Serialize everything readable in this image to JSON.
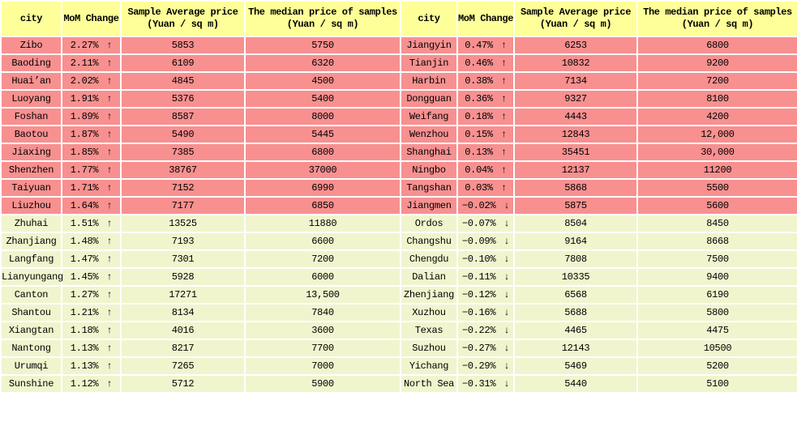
{
  "chart_data": {
    "type": "table",
    "column_headers": {
      "city": "city",
      "mom": "MoM Change",
      "avg_line1": "Sample Average price",
      "avg_line2": "(Yuan / sq m)",
      "median_line1": "The median price of samples",
      "median_line2": "(Yuan / sq m)"
    },
    "arrow_up": "↑",
    "arrow_down": "↓",
    "colors": {
      "header_bg": "#FFFF99",
      "rose_row_bg": "#F89090",
      "lime_row_bg": "#F0F5CE",
      "grid": "#FFFFFF",
      "text": "#000000"
    },
    "tables": [
      {
        "rose_row_count": 10,
        "rows": [
          [
            "Zibo",
            "2.27%",
            "up",
            "5853",
            "5750"
          ],
          [
            "Baoding",
            "2.11%",
            "up",
            "6109",
            "6320"
          ],
          [
            "Huai’an",
            "2.02%",
            "up",
            "4845",
            "4500"
          ],
          [
            "Luoyang",
            "1.91%",
            "up",
            "5376",
            "5400"
          ],
          [
            "Foshan",
            "1.89%",
            "up",
            "8587",
            "8000"
          ],
          [
            "Baotou",
            "1.87%",
            "up",
            "5490",
            "5445"
          ],
          [
            "Jiaxing",
            "1.85%",
            "up",
            "7385",
            "6800"
          ],
          [
            "Shenzhen",
            "1.77%",
            "up",
            "38767",
            "37000"
          ],
          [
            "Taiyuan",
            "1.71%",
            "up",
            "7152",
            "6990"
          ],
          [
            "Liuzhou",
            "1.64%",
            "up",
            "7177",
            "6850"
          ],
          [
            "Zhuhai",
            "1.51%",
            "up",
            "13525",
            "11880"
          ],
          [
            "Zhanjiang",
            "1.48%",
            "up",
            "7193",
            "6600"
          ],
          [
            "Langfang",
            "1.47%",
            "up",
            "7301",
            "7200"
          ],
          [
            "Lianyungang",
            "1.45%",
            "up",
            "5928",
            "6000"
          ],
          [
            "Canton",
            "1.27%",
            "up",
            "17271",
            "13,500"
          ],
          [
            "Shantou",
            "1.21%",
            "up",
            "8134",
            "7840"
          ],
          [
            "Xiangtan",
            "1.18%",
            "up",
            "4016",
            "3600"
          ],
          [
            "Nantong",
            "1.13%",
            "up",
            "8217",
            "7700"
          ],
          [
            "Urumqi",
            "1.13%",
            "up",
            "7265",
            "7000"
          ],
          [
            "Sunshine",
            "1.12%",
            "up",
            "5712",
            "5900"
          ]
        ]
      },
      {
        "rose_row_count": 10,
        "rows": [
          [
            "Jiangyin",
            "0.47%",
            "up",
            "6253",
            "6800"
          ],
          [
            "Tianjin",
            "0.46%",
            "up",
            "10832",
            "9200"
          ],
          [
            "Harbin",
            "0.38%",
            "up",
            "7134",
            "7200"
          ],
          [
            "Dongguan",
            "0.36%",
            "up",
            "9327",
            "8100"
          ],
          [
            "Weifang",
            "0.18%",
            "up",
            "4443",
            "4200"
          ],
          [
            "Wenzhou",
            "0.15%",
            "up",
            "12843",
            "12,000"
          ],
          [
            "Shanghai",
            "0.13%",
            "up",
            "35451",
            "30,000"
          ],
          [
            "Ningbo",
            "0.04%",
            "up",
            "12137",
            "11200"
          ],
          [
            "Tangshan",
            "0.03%",
            "up",
            "5868",
            "5500"
          ],
          [
            "Jiangmen",
            "−0.02%",
            "down",
            "5875",
            "5600"
          ],
          [
            "Ordos",
            "−0.07%",
            "down",
            "8504",
            "8450"
          ],
          [
            "Changshu",
            "−0.09%",
            "down",
            "9164",
            "8668"
          ],
          [
            "Chengdu",
            "−0.10%",
            "down",
            "7808",
            "7500"
          ],
          [
            "Dalian",
            "−0.11%",
            "down",
            "10335",
            "9400"
          ],
          [
            "Zhenjiang",
            "−0.12%",
            "down",
            "6568",
            "6190"
          ],
          [
            "Xuzhou",
            "−0.16%",
            "down",
            "5688",
            "5800"
          ],
          [
            "Texas",
            "−0.22%",
            "down",
            "4465",
            "4475"
          ],
          [
            "Suzhou",
            "−0.27%",
            "down",
            "12143",
            "10500"
          ],
          [
            "Yichang",
            "−0.29%",
            "down",
            "5469",
            "5200"
          ],
          [
            "North Sea",
            "−0.31%",
            "down",
            "5440",
            "5100"
          ]
        ]
      }
    ]
  }
}
